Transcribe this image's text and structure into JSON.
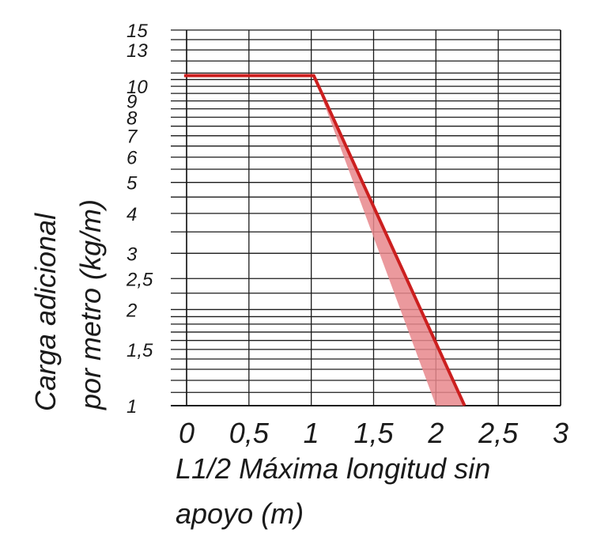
{
  "chart_data": {
    "type": "line",
    "title": "",
    "xlabel_lines": [
      "L1/2 Máxima longitud sin",
      "apoyo (m)"
    ],
    "ylabel_lines": [
      "Carga adicional",
      "por metro (kg/m)"
    ],
    "xlim": [
      0,
      3
    ],
    "ylim": [
      1,
      15
    ],
    "yscale": "log",
    "grid": true,
    "x_ticks": [
      {
        "value": 0,
        "label": "0"
      },
      {
        "value": 0.5,
        "label": "0,5"
      },
      {
        "value": 1,
        "label": "1"
      },
      {
        "value": 1.5,
        "label": "1,5"
      },
      {
        "value": 2,
        "label": "2"
      },
      {
        "value": 2.5,
        "label": "2,5"
      },
      {
        "value": 3,
        "label": "3"
      }
    ],
    "y_ticks": [
      {
        "value": 1,
        "label": "1"
      },
      {
        "value": 1.5,
        "label": "1,5"
      },
      {
        "value": 2,
        "label": "2"
      },
      {
        "value": 2.5,
        "label": "2,5"
      },
      {
        "value": 3,
        "label": "3"
      },
      {
        "value": 4,
        "label": "4"
      },
      {
        "value": 5,
        "label": "5"
      },
      {
        "value": 6,
        "label": "6"
      },
      {
        "value": 7,
        "label": "7"
      },
      {
        "value": 8,
        "label": "8"
      },
      {
        "value": 9,
        "label": "9"
      },
      {
        "value": 10,
        "label": "10"
      },
      {
        "value": 13,
        "label": "13"
      },
      {
        "value": 15,
        "label": "15"
      }
    ],
    "y_gridlines": [
      1,
      1.1,
      1.2,
      1.3,
      1.4,
      1.5,
      1.6,
      1.7,
      1.8,
      1.9,
      2,
      2.25,
      2.5,
      3,
      3.5,
      4,
      4.5,
      5,
      5.5,
      6,
      6.5,
      7,
      7.5,
      8,
      8.5,
      9,
      9.5,
      10,
      10.5,
      11,
      12,
      13,
      14,
      15
    ],
    "series": [
      {
        "color": "#cc1f1f",
        "x": [
          -0.02,
          1.02,
          2.23
        ],
        "y": [
          10.8,
          10.8,
          1.0
        ]
      }
    ],
    "shaded_band": {
      "color": "#e8878c",
      "upper_x": [
        1.02,
        2.23
      ],
      "upper_y": [
        10.8,
        1.0
      ],
      "lower_x": [
        1.02,
        2.0
      ],
      "lower_y": [
        10.8,
        1.0
      ]
    }
  }
}
